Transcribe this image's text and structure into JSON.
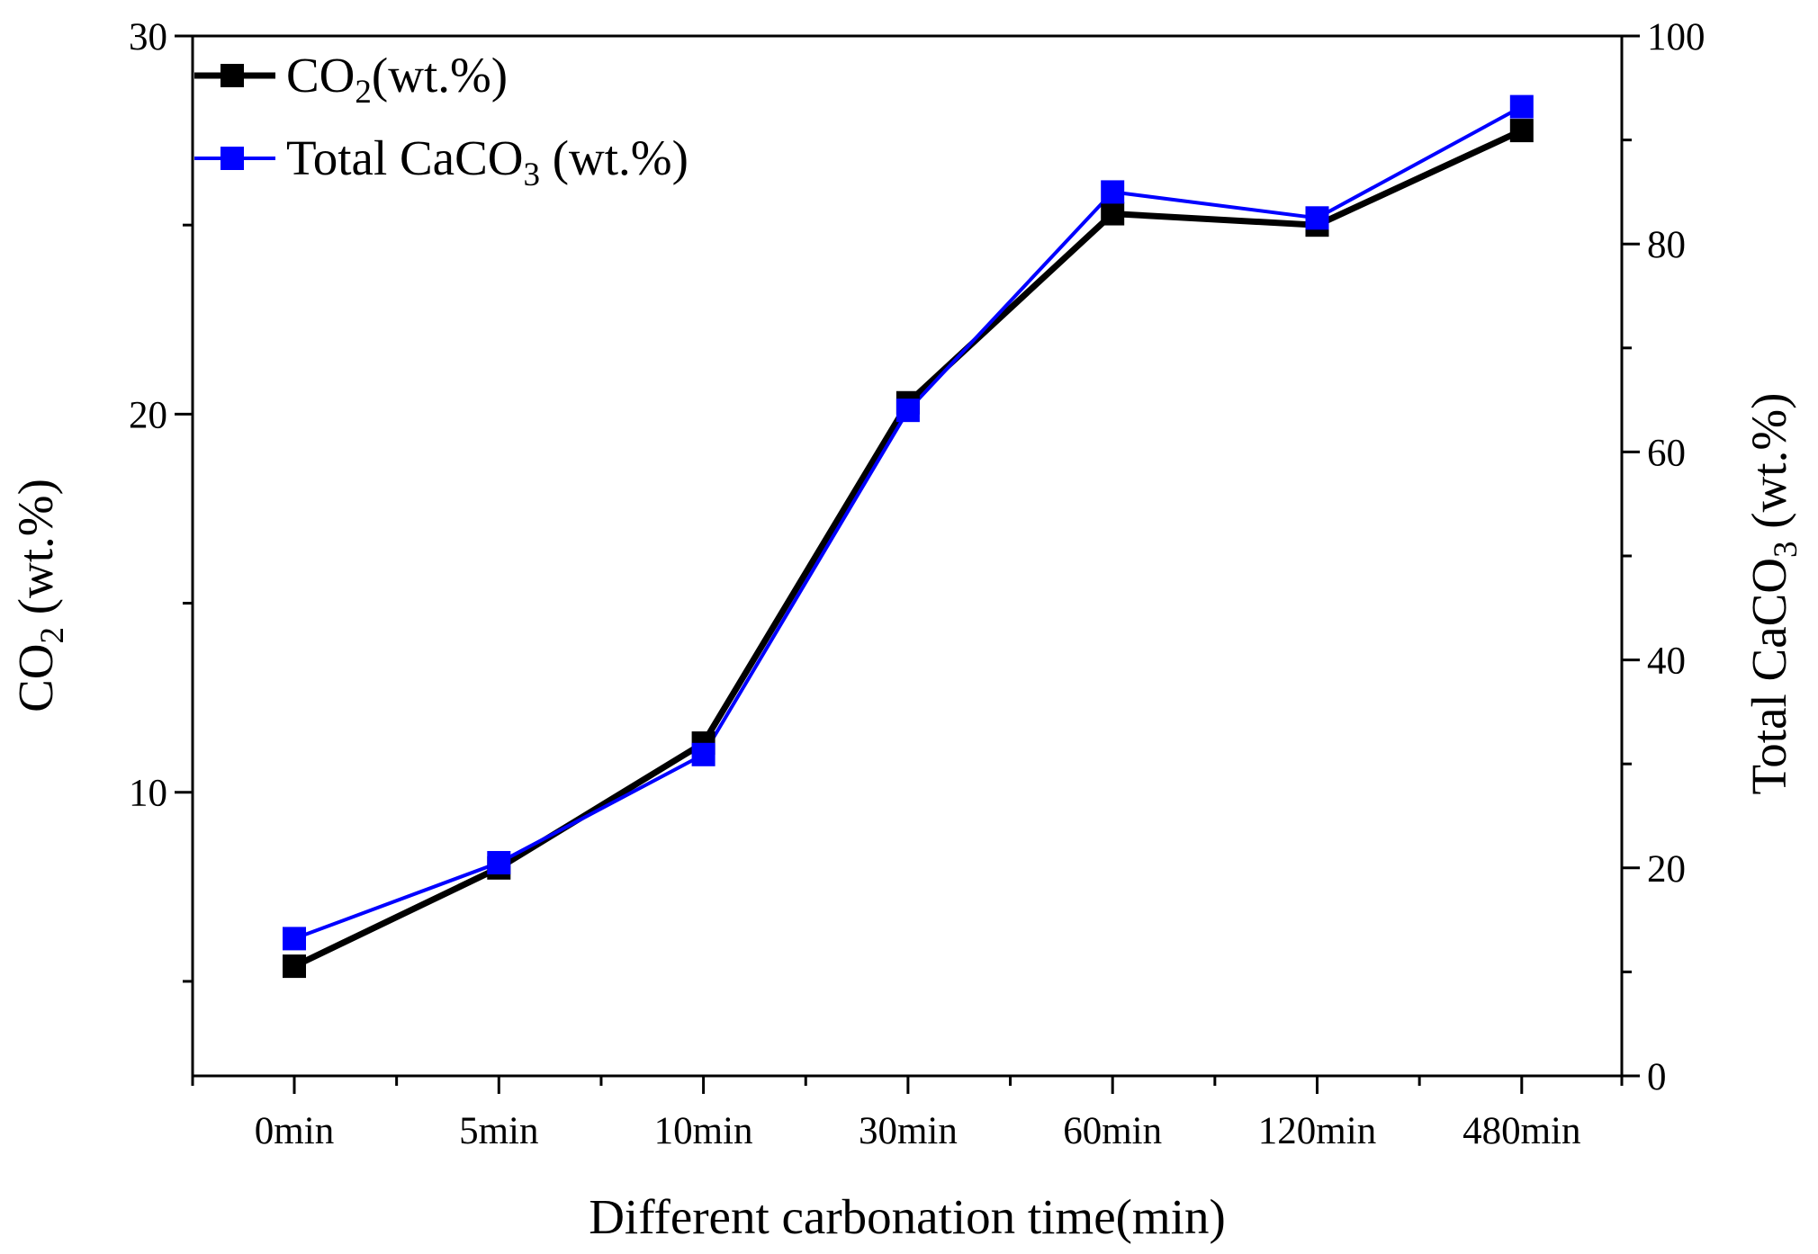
{
  "chart_data": {
    "type": "line",
    "categories": [
      "0min",
      "5min",
      "10min",
      "30min",
      "60min",
      "120min",
      "480min"
    ],
    "xlabel": "Different carbonation time(min)",
    "left_axis": {
      "label_main": "CO",
      "label_sub": "2",
      "label_tail": " (wt.%)",
      "ylim": [
        2.5,
        30
      ],
      "ticks": [
        10,
        20,
        30
      ],
      "tick_labels": [
        "10",
        "20",
        "30"
      ],
      "minor_ticks": [
        5,
        15,
        25
      ]
    },
    "right_axis": {
      "label_main": "Total CaCO",
      "label_sub": "3",
      "label_tail": " (wt.%)",
      "ylim": [
        0,
        100
      ],
      "ticks": [
        0,
        20,
        40,
        60,
        80,
        100
      ],
      "tick_labels": [
        "0",
        "20",
        "40",
        "60",
        "80",
        "100"
      ],
      "minor_ticks": [
        10,
        30,
        50,
        70,
        90
      ]
    },
    "series": [
      {
        "name": "CO2(wt.%)",
        "legend_main": "CO",
        "legend_sub": "2",
        "legend_tail": "(wt.%)",
        "axis": "left",
        "color": "#000000",
        "values": [
          5.4,
          8.0,
          11.3,
          20.3,
          25.3,
          25.0,
          27.5
        ]
      },
      {
        "name": "Total CaCO3 (wt.%)",
        "legend_main": "Total CaCO",
        "legend_sub": "3",
        "legend_tail": " (wt.%)",
        "axis": "right",
        "color": "#0000ff",
        "values": [
          13.2,
          20.5,
          30.9,
          64.0,
          85.0,
          82.5,
          93.2
        ]
      }
    ],
    "legend_position": "top-left",
    "grid": false
  }
}
